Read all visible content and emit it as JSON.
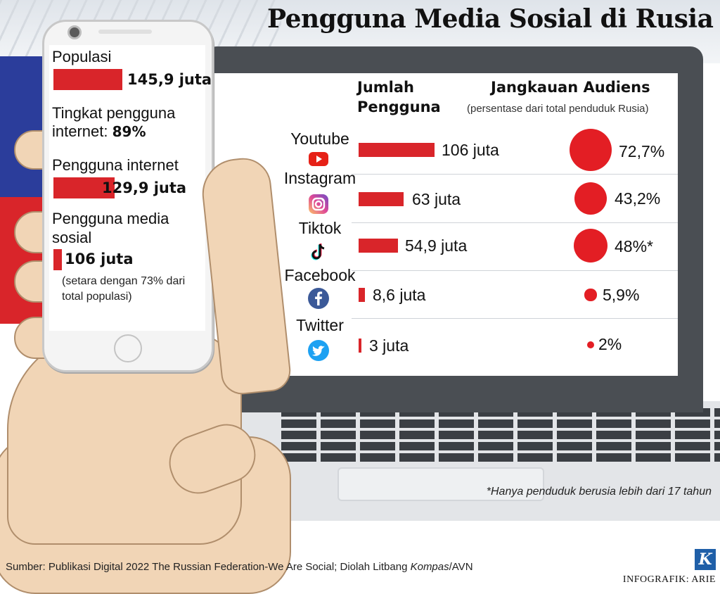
{
  "title": "Pengguna Media Sosial di Rusia",
  "phone": {
    "populasi_label": "Populasi",
    "populasi_value": "145,9 juta",
    "tingkat_label_1": "Tingkat pengguna",
    "tingkat_label_2": "internet: ",
    "tingkat_value": "89%",
    "internet_label": "Pengguna internet",
    "internet_value": "129,9 juta",
    "media_label_1": "Pengguna media",
    "media_label_2": "sosial",
    "media_value": "106 juta",
    "note_1": "(setara dengan 73% dari",
    "note_2": "total populasi)"
  },
  "table": {
    "col1_line1": "Jumlah",
    "col1_line2": "Pengguna",
    "col2_title": "Jangkauan Audiens",
    "col2_sub": "(persentase dari total penduduk Rusia)"
  },
  "chart_data": {
    "type": "bar",
    "categories": [
      "Youtube",
      "Instagram",
      "Tiktok",
      "Facebook",
      "Twitter"
    ],
    "series": [
      {
        "name": "Jumlah Pengguna",
        "values": [
          106,
          63,
          54.9,
          8.6,
          3
        ],
        "labels": [
          "106 juta",
          "63 juta",
          "54,9 juta",
          "8,6 juta",
          "3 juta"
        ]
      },
      {
        "name": "Jangkauan Audiens",
        "values": [
          72.7,
          43.2,
          48,
          5.9,
          2
        ],
        "labels": [
          "72,7%",
          "43,2%",
          "48%*",
          "5,9%",
          "2%"
        ]
      }
    ],
    "phone_stats": [
      {
        "label": "Populasi",
        "value": 145.9
      },
      {
        "label": "Pengguna internet",
        "value": 129.9
      },
      {
        "label": "Pengguna media sosial",
        "value": 106
      }
    ]
  },
  "icons": [
    "youtube-icon",
    "instagram-icon",
    "tiktok-icon",
    "facebook-icon",
    "twitter-icon"
  ],
  "colors": {
    "accent": "#d9252a",
    "youtube": "#e62117",
    "instagram": "#d6249f",
    "facebook": "#3b5998",
    "twitter": "#1da1f2"
  },
  "footnote": "*Hanya penduduk berusia lebih dari 17 tahun",
  "source_prefix": "Sumber: Publikasi Digital 2022 The Russian Federation-We Are Social; Diolah Litbang ",
  "source_italic": "Kompas",
  "source_suffix": "/AVN",
  "credit": "INFOGRAFIK: ARIE",
  "logo_letter": "K"
}
